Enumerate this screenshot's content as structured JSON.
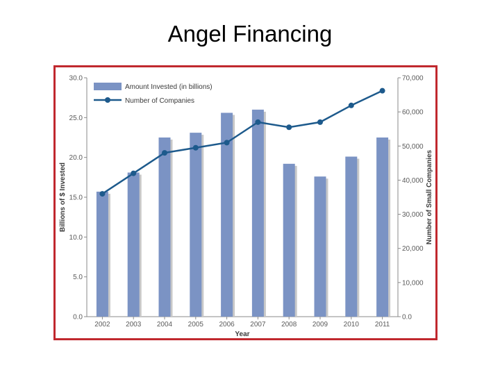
{
  "slide": {
    "title": "Angel Financing"
  },
  "colors": {
    "frame": "#c0282e",
    "bar": "#7b93c4",
    "bar_shadow": "#c8c8c8",
    "line": "#1d5a8c",
    "axis": "#8a8a8a"
  },
  "chart_data": {
    "type": "bar",
    "categories": [
      "2002",
      "2003",
      "2004",
      "2005",
      "2006",
      "2007",
      "2008",
      "2009",
      "2010",
      "2011"
    ],
    "series": [
      {
        "name": "Amount Invested (in billions)",
        "type": "bar",
        "axis": "left",
        "values": [
          15.7,
          18.1,
          22.5,
          23.1,
          25.6,
          26.0,
          19.2,
          17.6,
          20.1,
          22.5
        ]
      },
      {
        "name": "Number of Companies",
        "type": "line",
        "axis": "right",
        "values": [
          36000,
          42000,
          48000,
          49500,
          51000,
          57000,
          55500,
          57000,
          61900,
          66200
        ]
      }
    ],
    "xlabel": "Year",
    "ylabel": "Billions of $ Invested",
    "y2label": "Number of Small Companies",
    "ylim": [
      0,
      30
    ],
    "y2lim": [
      0,
      70000
    ],
    "yticks": [
      "0.0",
      "5.0",
      "10.0",
      "15.0",
      "20.0",
      "25.0",
      "30.0"
    ],
    "y2ticks": [
      "0.0",
      "10,000",
      "20,000",
      "30,000",
      "40,000",
      "50,000",
      "60,000",
      "70,000"
    ],
    "legend_position": "top-left",
    "grid": false
  }
}
